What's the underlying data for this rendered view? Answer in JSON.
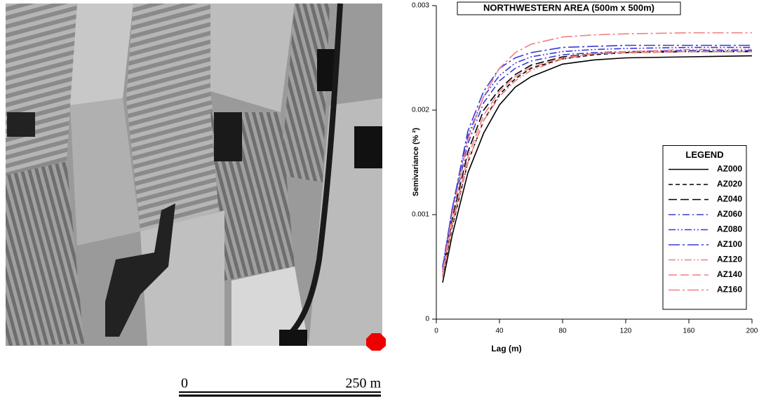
{
  "chart_data": {
    "type": "line",
    "title": "NORTHWESTERN AREA (500m x 500m)",
    "x_label": "Lag (m)",
    "y_label": "Semivariance (% ²)",
    "legend_title": "LEGEND",
    "legend": "lower right",
    "x": [
      4,
      10,
      20,
      30,
      40,
      50,
      60,
      80,
      100,
      120,
      160,
      200
    ],
    "xlim": [
      0,
      200
    ],
    "xticks": [
      0,
      40,
      80,
      120,
      160,
      200
    ],
    "ylim": [
      0,
      0.003
    ],
    "yticks": [
      0,
      0.001,
      0.002,
      0.003
    ],
    "series": [
      {
        "name": "AZ000",
        "color": "#000000",
        "dash": "solid",
        "values": [
          0.00035,
          0.0008,
          0.0014,
          0.00178,
          0.00205,
          0.00222,
          0.00232,
          0.00244,
          0.00248,
          0.0025,
          0.00251,
          0.00252
        ]
      },
      {
        "name": "AZ020",
        "color": "#000000",
        "dash": "dash",
        "values": [
          0.0004,
          0.00088,
          0.0015,
          0.0019,
          0.00215,
          0.0023,
          0.0024,
          0.00249,
          0.00253,
          0.00255,
          0.00256,
          0.00256
        ]
      },
      {
        "name": "AZ040",
        "color": "#000000",
        "dash": "longdash",
        "values": [
          0.00045,
          0.00095,
          0.0016,
          0.002,
          0.0022,
          0.00234,
          0.00243,
          0.00251,
          0.00254,
          0.00255,
          0.00256,
          0.00256
        ]
      },
      {
        "name": "AZ060",
        "color": "#3a3ad8",
        "dash": "dashdot",
        "values": [
          0.0005,
          0.001,
          0.00168,
          0.00207,
          0.00228,
          0.0024,
          0.00247,
          0.00253,
          0.00255,
          0.00256,
          0.00257,
          0.00257
        ]
      },
      {
        "name": "AZ080",
        "color": "#3a3ad8",
        "dash": "dashdotdot",
        "values": [
          0.0005,
          0.00105,
          0.00175,
          0.00213,
          0.00233,
          0.00245,
          0.00251,
          0.00256,
          0.00258,
          0.00259,
          0.0026,
          0.0026
        ]
      },
      {
        "name": "AZ100",
        "color": "#3a3ad8",
        "dash": "longdashdot",
        "values": [
          0.00048,
          0.00105,
          0.0018,
          0.00218,
          0.0024,
          0.0025,
          0.00255,
          0.0026,
          0.00261,
          0.00262,
          0.00262,
          0.00262
        ]
      },
      {
        "name": "AZ120",
        "color": "#f08080",
        "dash": "dashdotdot",
        "values": [
          0.0004,
          0.0009,
          0.0015,
          0.0019,
          0.00213,
          0.00228,
          0.00238,
          0.00249,
          0.00254,
          0.00256,
          0.00258,
          0.00258
        ]
      },
      {
        "name": "AZ140",
        "color": "#f08080",
        "dash": "longdash",
        "values": [
          0.00042,
          0.00092,
          0.00155,
          0.00195,
          0.00218,
          0.00232,
          0.00241,
          0.0025,
          0.00254,
          0.00255,
          0.00256,
          0.00256
        ]
      },
      {
        "name": "AZ160",
        "color": "#f08080",
        "dash": "longdashdot",
        "values": [
          0.00045,
          0.001,
          0.00172,
          0.00213,
          0.0024,
          0.00255,
          0.00263,
          0.0027,
          0.00272,
          0.00273,
          0.00274,
          0.00274
        ]
      }
    ]
  },
  "scale_bar": {
    "start": "0",
    "end": "250 m"
  }
}
